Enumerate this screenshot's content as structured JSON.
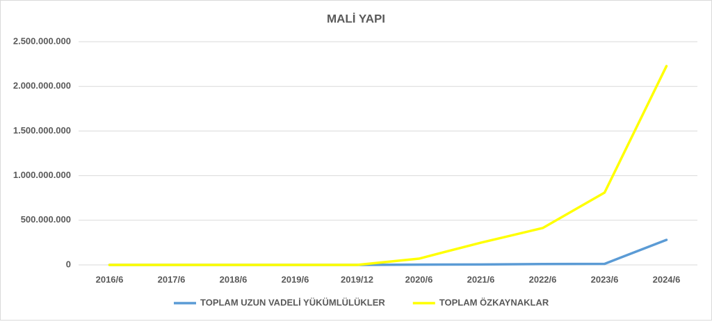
{
  "chart_data": {
    "type": "line",
    "title": "MALİ YAPI",
    "categories": [
      "2016/6",
      "2017/6",
      "2018/6",
      "2019/6",
      "2019/12",
      "2020/6",
      "2021/6",
      "2022/6",
      "2023/6",
      "2024/6"
    ],
    "series": [
      {
        "name": "TOPLAM UZUN VADELİ YÜKÜMLÜLÜKLER",
        "color": "#5b9bd5",
        "values": [
          0,
          0,
          0,
          0,
          0,
          3000000,
          5000000,
          10000000,
          12000000,
          280000000
        ]
      },
      {
        "name": "TOPLAM ÖZKAYNAKLAR",
        "color": "#ffff00",
        "values": [
          0,
          0,
          0,
          0,
          0,
          70000000,
          249000000,
          413000000,
          810000000,
          2227000000
        ]
      }
    ],
    "ylim": [
      0,
      2500000000
    ],
    "yticks": [
      0,
      {
        "value": 500000000,
        "label": "500.000.000"
      },
      {
        "value": 1000000000,
        "label": "1.000.000.000"
      },
      {
        "value": 1500000000,
        "label": "1.500.000.000"
      },
      {
        "value": 2000000000,
        "label": "2.000.000.000"
      },
      {
        "value": 2500000000,
        "label": "2.500.000.000"
      }
    ],
    "grid": true,
    "legend": "bottom"
  }
}
